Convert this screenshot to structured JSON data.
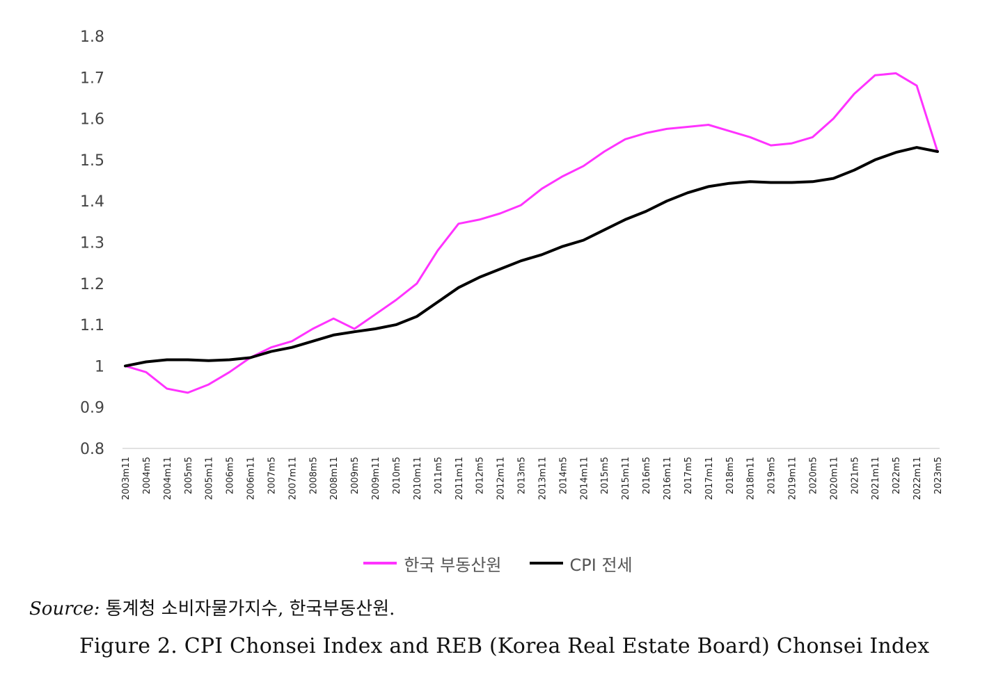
{
  "chart_data": {
    "type": "line",
    "title": "",
    "xlabel": "",
    "ylabel": "",
    "ylim": [
      0.8,
      1.8
    ],
    "yticks": [
      "0.8",
      "0.9",
      "1",
      "1.1",
      "1.2",
      "1.3",
      "1.4",
      "1.5",
      "1.6",
      "1.7",
      "1.8"
    ],
    "grid": false,
    "legend_position": "bottom",
    "categories": [
      "2003m11",
      "2004m5",
      "2004m11",
      "2005m5",
      "2005m11",
      "2006m5",
      "2006m11",
      "2007m5",
      "2007m11",
      "2008m5",
      "2008m11",
      "2009m5",
      "2009m11",
      "2010m5",
      "2010m11",
      "2011m5",
      "2011m11",
      "2012m5",
      "2012m11",
      "2013m5",
      "2013m11",
      "2014m5",
      "2014m11",
      "2015m5",
      "2015m11",
      "2016m5",
      "2016m11",
      "2017m5",
      "2017m11",
      "2018m5",
      "2018m11",
      "2019m5",
      "2019m11",
      "2020m5",
      "2020m11",
      "2021m5",
      "2021m11",
      "2022m5",
      "2022m11",
      "2023m5"
    ],
    "series": [
      {
        "name": "한국 부동산원",
        "color": "#ff33ff",
        "values": [
          1.0,
          0.985,
          0.945,
          0.935,
          0.955,
          0.985,
          1.02,
          1.045,
          1.06,
          1.09,
          1.115,
          1.09,
          1.125,
          1.16,
          1.2,
          1.28,
          1.345,
          1.355,
          1.37,
          1.39,
          1.43,
          1.46,
          1.485,
          1.52,
          1.55,
          1.565,
          1.575,
          1.58,
          1.585,
          1.57,
          1.555,
          1.535,
          1.54,
          1.555,
          1.6,
          1.66,
          1.705,
          1.71,
          1.68,
          1.52
        ]
      },
      {
        "name": "CPI 전세",
        "color": "#000000",
        "values": [
          1.0,
          1.01,
          1.015,
          1.015,
          1.013,
          1.015,
          1.02,
          1.035,
          1.045,
          1.06,
          1.075,
          1.083,
          1.09,
          1.1,
          1.12,
          1.155,
          1.19,
          1.215,
          1.235,
          1.255,
          1.27,
          1.29,
          1.305,
          1.33,
          1.355,
          1.375,
          1.4,
          1.42,
          1.435,
          1.443,
          1.447,
          1.445,
          1.445,
          1.447,
          1.455,
          1.475,
          1.5,
          1.518,
          1.53,
          1.52
        ]
      }
    ]
  },
  "legend": {
    "items": [
      {
        "label": "한국 부동산원",
        "color": "#ff33ff"
      },
      {
        "label": "CPI 전세",
        "color": "#000000"
      }
    ]
  },
  "source": {
    "label": "Source:",
    "text": " 통계청 소비자물가지수, 한국부동산원."
  },
  "caption": "Figure 2. CPI Chonsei Index and REB (Korea Real Estate Board) Chonsei Index"
}
